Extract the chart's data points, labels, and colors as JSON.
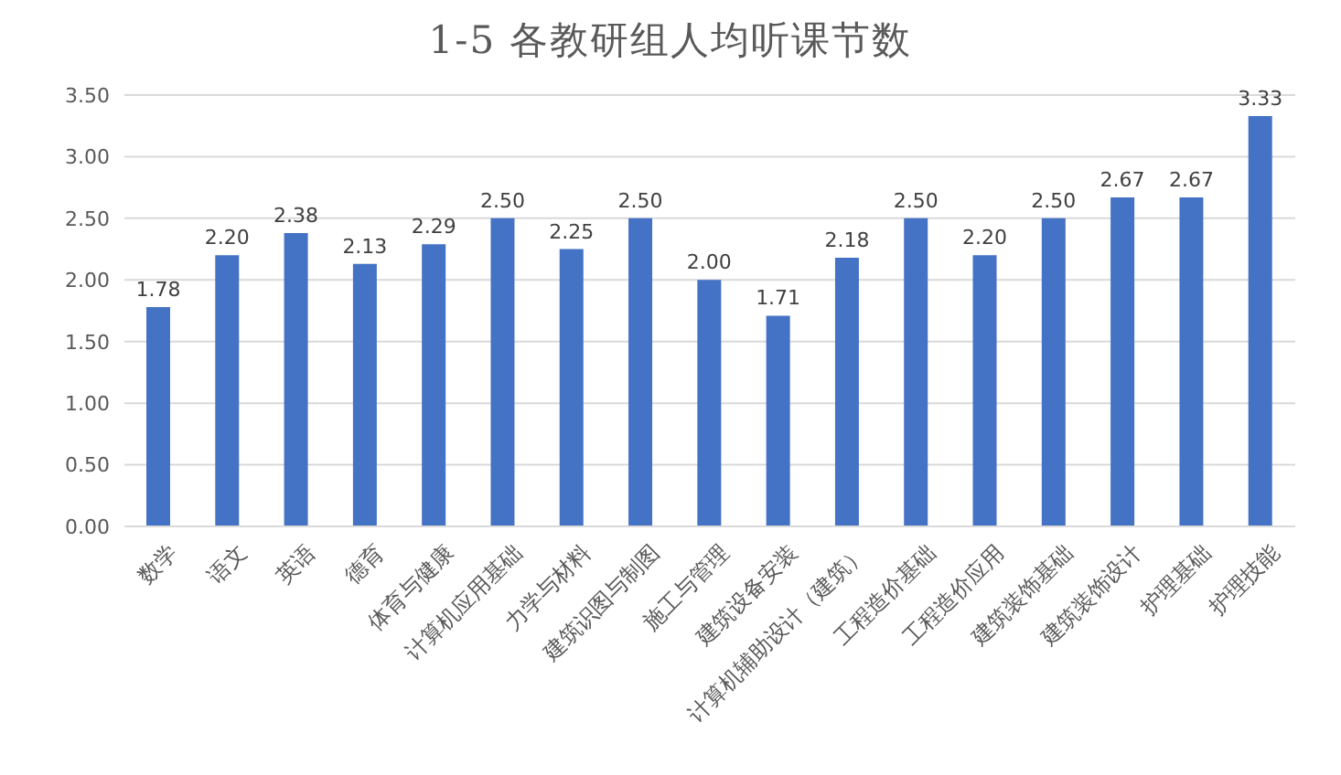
{
  "chart_data": {
    "type": "bar",
    "title": "1-5 各教研组人均听课节数",
    "categories": [
      "数学",
      "语文",
      "英语",
      "德育",
      "体育与健康",
      "计算机应用基础",
      "力学与材料",
      "建筑识图与制图",
      "施工与管理",
      "建筑设备安装",
      "计算机辅助设计（建筑）",
      "工程造价基础",
      "工程造价应用",
      "建筑装饰基础",
      "建筑装饰设计",
      "护理基础",
      "护理技能"
    ],
    "values": [
      1.78,
      2.2,
      2.38,
      2.13,
      2.29,
      2.5,
      2.25,
      2.5,
      2.0,
      1.71,
      2.18,
      2.5,
      2.2,
      2.5,
      2.67,
      2.67,
      3.33
    ],
    "value_labels": [
      "1.78",
      "2.20",
      "2.38",
      "2.13",
      "2.29",
      "2.50",
      "2.25",
      "2.50",
      "2.00",
      "1.71",
      "2.18",
      "2.50",
      "2.20",
      "2.50",
      "2.67",
      "2.67",
      "3.33"
    ],
    "color": "#4472c4",
    "ylim": [
      0,
      3.5
    ],
    "yticks": [
      {
        "value": 0,
        "label": "0.00"
      },
      {
        "value": 0.5,
        "label": "0.50"
      },
      {
        "value": 1,
        "label": "1.00"
      },
      {
        "value": 1.5,
        "label": "1.50"
      },
      {
        "value": 2,
        "label": "2.00"
      },
      {
        "value": 2.5,
        "label": "2.50"
      },
      {
        "value": 3,
        "label": "3.00"
      },
      {
        "value": 3.5,
        "label": "3.50"
      }
    ],
    "grid": "y"
  }
}
